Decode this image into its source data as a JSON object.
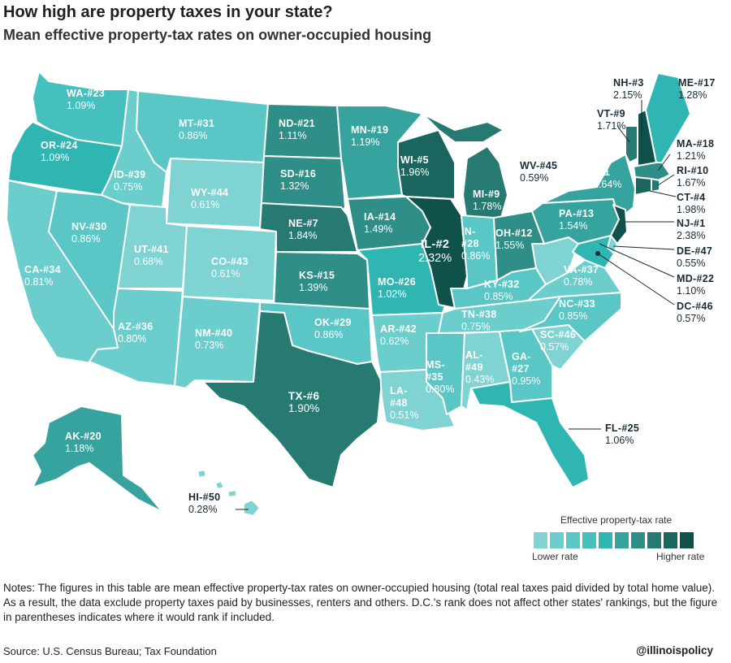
{
  "title": "How high are property taxes in your state?",
  "subtitle": "Mean effective property-tax rates on owner-occupied housing",
  "colors": {
    "c1": "#7fd3d3",
    "c2": "#6ccdcd",
    "c3": "#5ac7c6",
    "c4": "#45c0bf",
    "c5": "#2fb6b3",
    "c6": "#36a39f",
    "c7": "#2f8e88",
    "c8": "#267a72",
    "c9": "#1a665e",
    "c10": "#0f514b",
    "dark_label": "#1a2a33",
    "background": "#ffffff"
  },
  "states": {
    "WA": {
      "code": "WA-#23",
      "rate": "1.09%"
    },
    "OR": {
      "code": "OR-#24",
      "rate": "1.09%"
    },
    "CA": {
      "code": "CA-#34",
      "rate": "0.81%"
    },
    "ID": {
      "code": "ID-#39",
      "rate": "0.75%"
    },
    "NV": {
      "code": "NV-#30",
      "rate": "0.86%"
    },
    "MT": {
      "code": "MT-#31",
      "rate": "0.86%"
    },
    "WY": {
      "code": "WY-#44",
      "rate": "0.61%"
    },
    "UT": {
      "code": "UT-#41",
      "rate": "0.68%"
    },
    "CO": {
      "code": "CO-#43",
      "rate": "0.61%"
    },
    "AZ": {
      "code": "AZ-#36",
      "rate": "0.80%"
    },
    "NM": {
      "code": "NM-#40",
      "rate": "0.73%"
    },
    "ND": {
      "code": "ND-#21",
      "rate": "1.11%"
    },
    "SD": {
      "code": "SD-#16",
      "rate": "1.32%"
    },
    "NE": {
      "code": "NE-#7",
      "rate": "1.84%"
    },
    "KS": {
      "code": "KS-#15",
      "rate": "1.39%"
    },
    "OK": {
      "code": "OK-#29",
      "rate": "0.86%"
    },
    "TX": {
      "code": "TX-#6",
      "rate": "1.90%"
    },
    "MN": {
      "code": "MN-#19",
      "rate": "1.19%"
    },
    "IA": {
      "code": "IA-#14",
      "rate": "1.49%"
    },
    "MO": {
      "code": "MO-#26",
      "rate": "1.02%"
    },
    "AR": {
      "code": "AR-#42",
      "rate": "0.62%"
    },
    "LA": {
      "code": "LA-",
      "code2": "#48",
      "rate": "0.51%"
    },
    "WI": {
      "code": "WI-#5",
      "rate": "1.96%"
    },
    "IL": {
      "code": "IL-#2",
      "rate": "2.32%"
    },
    "MI": {
      "code": "MI-#9",
      "rate": "1.78%"
    },
    "IN": {
      "code": "IN-",
      "code2": "#28",
      "rate": "0.86%"
    },
    "OH": {
      "code": "OH-#12",
      "rate": "1.55%"
    },
    "KY": {
      "code": "KY-#32",
      "rate": "0.85%"
    },
    "TN": {
      "code": "TN-#38",
      "rate": "0.75%"
    },
    "MS": {
      "code": "MS-",
      "code2": "#35",
      "rate": "0.80%"
    },
    "AL": {
      "code": "AL-",
      "code2": "#49",
      "rate": "0.43%"
    },
    "GA": {
      "code": "GA-",
      "code2": "#27",
      "rate": "0.95%"
    },
    "FL": {
      "code": "FL-#25",
      "rate": "1.06%"
    },
    "SC": {
      "code": "SC-#46",
      "rate": "0.57%"
    },
    "NC": {
      "code": "NC-#33",
      "rate": "0.85%"
    },
    "VA": {
      "code": "VA-#37",
      "rate": "0.78%"
    },
    "WV": {
      "code": "WV-#45",
      "rate": "0.59%"
    },
    "PA": {
      "code": "PA-#13",
      "rate": "1.54%"
    },
    "NY": {
      "code": "NY-",
      "code2": "#11",
      "rate": "1.64%"
    },
    "VT": {
      "code": "VT-#9",
      "rate": "1.71%"
    },
    "NH": {
      "code": "NH-#3",
      "rate": "2.15%"
    },
    "ME": {
      "code": "ME-#17",
      "rate": "1.28%"
    },
    "MA": {
      "code": "MA-#18",
      "rate": "1.21%"
    },
    "RI": {
      "code": "RI-#10",
      "rate": "1.67%"
    },
    "CT": {
      "code": "CT-#4",
      "rate": "1.98%"
    },
    "NJ": {
      "code": "NJ-#1",
      "rate": "2.38%"
    },
    "DE": {
      "code": "DE-#47",
      "rate": "0.55%"
    },
    "MD": {
      "code": "MD-#22",
      "rate": "1.10%"
    },
    "DC": {
      "code": "DC-#46",
      "rate": "0.57%"
    },
    "AK": {
      "code": "AK-#20",
      "rate": "1.18%"
    },
    "HI": {
      "code": "HI-#50",
      "rate": "0.28%"
    }
  },
  "legend": {
    "title": "Effective property-tax rate",
    "low": "Lower rate",
    "high": "Higher rate",
    "swatches": [
      "#7fd3d3",
      "#6ccdcd",
      "#5ac7c6",
      "#45c0bf",
      "#2fb6b3",
      "#36a39f",
      "#2f8e88",
      "#267a72",
      "#1a665e",
      "#0f514b"
    ]
  },
  "notes": "Notes: The figures in this table are mean effective property-tax rates on owner-occupied housing (total real taxes paid divided by total home value). As a result, the data exclude property taxes paid by businesses, renters and others. D.C.'s rank does not affect other states' rankings, but the figure in parentheses indicates where it would rank if included.",
  "source": "Source: U.S. Census Bureau; Tax Foundation",
  "handle": "@illinoispolicy"
}
